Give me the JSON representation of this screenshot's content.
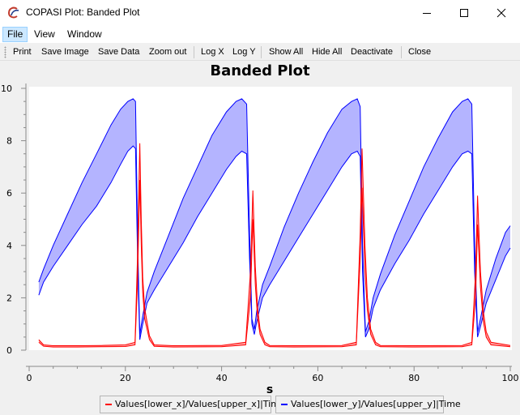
{
  "window": {
    "title": "COPASI Plot: Banded Plot"
  },
  "menu": {
    "items": [
      {
        "label": "File",
        "name": "menu-file"
      },
      {
        "label": "View",
        "name": "menu-view"
      },
      {
        "label": "Window",
        "name": "menu-window"
      }
    ]
  },
  "toolbar": {
    "buttons": [
      {
        "label": "Print",
        "name": "print-button"
      },
      {
        "label": "Save Image",
        "name": "save-image-button"
      },
      {
        "label": "Save Data",
        "name": "save-data-button"
      },
      {
        "label": "Zoom out",
        "name": "zoom-out-button"
      },
      {
        "label": "Log X",
        "name": "log-x-button"
      },
      {
        "label": "Log Y",
        "name": "log-y-button"
      },
      {
        "label": "Show All",
        "name": "show-all-button"
      },
      {
        "label": "Hide All",
        "name": "hide-all-button"
      },
      {
        "label": "Deactivate",
        "name": "deactivate-button"
      },
      {
        "label": "Close",
        "name": "close-plot-button"
      }
    ]
  },
  "plot": {
    "title": "Banded Plot",
    "xlabel": "s"
  },
  "legend": {
    "items": [
      {
        "label": "Values[lower_x]/Values[upper_x]|Time",
        "color": "#ff0000"
      },
      {
        "label": "Values[lower_y]/Values[upper_y]|Time",
        "color": "#0000ff"
      }
    ]
  },
  "colors": {
    "band_x_fill": "#ff0000",
    "band_y_fill": "#b4b4ff",
    "line_x": "#ff0000",
    "line_y": "#0000ff"
  },
  "chart_data": {
    "type": "area",
    "title": "Banded Plot",
    "xlabel": "s",
    "ylabel": "",
    "xlim": [
      0,
      100
    ],
    "ylim": [
      0,
      10
    ],
    "x_ticks": [
      0,
      20,
      40,
      60,
      80,
      100
    ],
    "y_ticks": [
      0,
      2,
      4,
      6,
      8,
      10
    ],
    "grid": false,
    "legend_position": "bottom",
    "series": [
      {
        "name": "Values[lower_x]/Values[upper_x]|Time",
        "color": "#ff0000",
        "x": [
          2,
          3,
          5,
          10,
          15,
          20,
          22,
          22.5,
          23,
          23.3,
          23.6,
          24,
          25,
          26,
          30,
          40,
          45,
          46,
          46.5,
          47,
          47.5,
          48,
          49,
          50,
          55,
          65,
          68,
          68.8,
          69.2,
          69.8,
          70.3,
          71,
          72,
          73,
          80,
          90,
          92,
          92.8,
          93.2,
          93.8,
          94.4,
          95,
          96,
          100
        ],
        "lower": [
          0.3,
          0.15,
          0.12,
          0.12,
          0.13,
          0.14,
          0.2,
          2.5,
          6.5,
          4.0,
          2.2,
          1.2,
          0.4,
          0.15,
          0.12,
          0.13,
          0.2,
          2.0,
          5.0,
          2.5,
          1.2,
          0.6,
          0.2,
          0.13,
          0.12,
          0.13,
          0.2,
          3.5,
          6.2,
          3.0,
          1.5,
          0.6,
          0.2,
          0.13,
          0.12,
          0.13,
          0.2,
          2.0,
          4.8,
          2.4,
          1.1,
          0.5,
          0.2,
          0.13
        ],
        "upper": [
          0.4,
          0.2,
          0.17,
          0.17,
          0.18,
          0.2,
          0.3,
          3.5,
          7.9,
          5.0,
          2.8,
          1.6,
          0.55,
          0.2,
          0.17,
          0.18,
          0.3,
          3.0,
          6.1,
          3.2,
          1.6,
          0.8,
          0.3,
          0.18,
          0.17,
          0.18,
          0.3,
          4.5,
          7.7,
          4.0,
          2.0,
          0.8,
          0.3,
          0.18,
          0.17,
          0.18,
          0.3,
          3.0,
          5.9,
          3.0,
          1.5,
          0.7,
          0.3,
          0.18
        ]
      },
      {
        "name": "Values[lower_y]/Values[upper_y]|Time",
        "color": "#0000ff",
        "x": [
          2,
          3,
          5,
          8,
          11,
          14,
          17,
          19,
          20.5,
          21.6,
          22.1,
          22.6,
          23,
          23.5,
          24.5,
          26,
          29,
          32,
          35,
          38,
          41,
          43,
          44.2,
          45.2,
          45.8,
          46.3,
          46.8,
          47.3,
          48.5,
          50,
          53,
          56,
          59,
          62,
          65,
          67,
          68.2,
          68.8,
          69.3,
          69.9,
          70.6,
          71.5,
          73,
          76,
          79,
          82,
          85,
          88,
          90,
          91.2,
          92,
          92.6,
          93.2,
          93.8,
          95,
          97,
          99,
          100
        ],
        "lower": [
          2.1,
          2.6,
          3.2,
          4.0,
          4.8,
          5.5,
          6.4,
          7.1,
          7.6,
          7.8,
          7.7,
          3.0,
          0.4,
          0.9,
          1.8,
          2.3,
          3.2,
          4.1,
          5.1,
          6.0,
          6.9,
          7.4,
          7.6,
          7.5,
          3.5,
          1.0,
          0.6,
          1.1,
          2.0,
          2.5,
          3.4,
          4.3,
          5.2,
          6.1,
          7.0,
          7.5,
          7.6,
          7.4,
          3.0,
          0.5,
          0.8,
          1.6,
          2.3,
          3.3,
          4.2,
          5.2,
          6.1,
          7.0,
          7.5,
          7.6,
          7.5,
          3.0,
          0.5,
          0.9,
          1.8,
          2.7,
          3.6,
          3.9
        ],
        "upper": [
          2.6,
          3.1,
          4.0,
          5.2,
          6.4,
          7.5,
          8.6,
          9.2,
          9.5,
          9.6,
          9.5,
          3.8,
          0.6,
          1.2,
          2.2,
          3.0,
          4.4,
          5.8,
          7.0,
          8.2,
          9.1,
          9.5,
          9.6,
          9.4,
          4.5,
          1.2,
          0.8,
          1.5,
          2.5,
          3.2,
          4.7,
          6.0,
          7.2,
          8.3,
          9.2,
          9.5,
          9.6,
          9.3,
          4.0,
          0.7,
          1.1,
          2.0,
          2.9,
          4.4,
          5.7,
          7.0,
          8.1,
          9.1,
          9.5,
          9.6,
          9.4,
          4.0,
          0.7,
          1.2,
          2.3,
          3.5,
          4.5,
          4.75
        ]
      }
    ]
  }
}
